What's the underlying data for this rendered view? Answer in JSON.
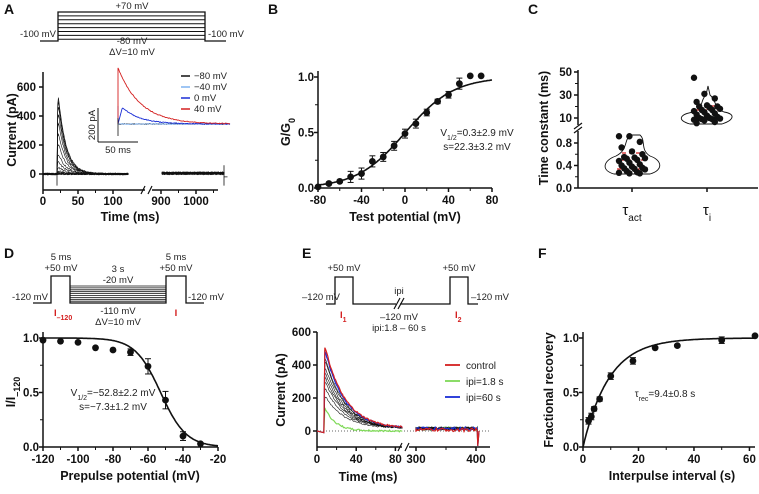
{
  "colors": {
    "red": "#d42020",
    "green": "#7ed957",
    "blue": "#1a2ed6",
    "lightblue": "#7fb2f0",
    "black": "#111111"
  },
  "chart_data": [
    {
      "panel": "A",
      "type": "line",
      "protocol": {
        "top": "+70 mV",
        "hold_left": "-100 mV",
        "hold_right": "-100 mV",
        "bottom": "-80 mV",
        "step": "ΔV=10 mV"
      },
      "xlabel": "Time (ms)",
      "ylabel": "Current (pA)",
      "xticks": [
        "0",
        "50",
        "100",
        "900",
        "1000"
      ],
      "yticks": [
        "0",
        "200",
        "400",
        "600"
      ],
      "x_segments": [
        [
          0,
          125
        ],
        [
          870,
          1100
        ]
      ],
      "ylim": [
        -100,
        700
      ],
      "inset": {
        "scale_y": "200 pA",
        "scale_x": "50 ms",
        "legend": [
          {
            "name": "−80 mV",
            "color": "#111111"
          },
          {
            "name": "−40 mV",
            "color": "#7fb2f0"
          },
          {
            "name": "0 mV",
            "color": "#1a2ed6"
          },
          {
            "name": "40 mV",
            "color": "#d42020"
          }
        ]
      }
    },
    {
      "panel": "B",
      "type": "scatter",
      "xlabel": "Test potential (mV)",
      "ylabel": {
        "main": "G/G",
        "sub": "0"
      },
      "xlim": [
        -80,
        80
      ],
      "ylim": [
        0,
        1.05
      ],
      "xticks": [
        "-80",
        "-40",
        "0",
        "40",
        "80"
      ],
      "yticks": [
        "0.0",
        "0.5",
        "1.0"
      ],
      "x": [
        -80,
        -70,
        -60,
        -50,
        -40,
        -30,
        -20,
        -10,
        0,
        10,
        20,
        30,
        40,
        50,
        60,
        70
      ],
      "y": [
        0.01,
        0.04,
        0.06,
        0.1,
        0.13,
        0.24,
        0.28,
        0.38,
        0.49,
        0.58,
        0.68,
        0.78,
        0.84,
        0.94,
        1.01,
        1.01
      ],
      "err": [
        0.01,
        0.01,
        0.01,
        0.05,
        0.05,
        0.05,
        0.04,
        0.04,
        0.04,
        0.04,
        0.03,
        0.02,
        0.03,
        0.05,
        0,
        0
      ],
      "fit": {
        "type": "boltzmann",
        "v_half": 0.3,
        "slope": 22.3
      },
      "annotation": [
        {
          "v": "V",
          "sub": "1/2",
          "rest": "=0.3±2.9 mV"
        },
        {
          "text": "s=22.3±3.2 mV"
        }
      ]
    },
    {
      "panel": "C",
      "type": "violin-scatter",
      "ylabel": "Time constant (ms)",
      "categories": [
        {
          "main": "τ",
          "sub": "act"
        },
        {
          "main": "τ",
          "sub": "i"
        }
      ],
      "yticks_lower": [
        "0.0",
        "0.4",
        "0.8"
      ],
      "yticks_upper": [
        "10",
        "30",
        "50"
      ],
      "y_segments": [
        [
          0,
          1.0
        ],
        [
          8,
          50
        ]
      ],
      "series": [
        {
          "values": [
            0.92,
            0.92,
            0.82,
            0.72,
            0.65,
            0.6,
            0.55,
            0.54,
            0.53,
            0.52,
            0.5,
            0.48,
            0.45,
            0.42,
            0.4,
            0.38,
            0.36,
            0.35,
            0.34,
            0.33,
            0.3,
            0.28,
            0.27,
            0.26,
            0.26
          ]
        },
        {
          "values": [
            45,
            31,
            27,
            24,
            21,
            20,
            20,
            19,
            18,
            17,
            17,
            16,
            15,
            14,
            13,
            12,
            11,
            10,
            10,
            9.5,
            9,
            9,
            8.5,
            8,
            6.5,
            5.5
          ]
        }
      ]
    },
    {
      "panel": "D",
      "type": "scatter",
      "protocol": {
        "pulse1_dur": "5 ms",
        "pulse1_v": "+50 mV",
        "hold_left": "-120 mV",
        "pre_dur": "3 s",
        "pre_top": "-20 mV",
        "pre_bottom": "-110 mV",
        "step": "ΔV=10 mV",
        "pulse2_dur": "5 ms",
        "pulse2_v": "+50 mV",
        "hold_right": "-120 mV",
        "i1_main": "I",
        "i1_sub": "–120",
        "i2": "I"
      },
      "xlabel": "Prepulse potential (mV)",
      "ylabel": {
        "main": "I/I",
        "sub": "–120"
      },
      "xlim": [
        -120,
        -20
      ],
      "ylim": [
        0,
        1.05
      ],
      "xticks": [
        "-120",
        "-100",
        "-80",
        "-60",
        "-40",
        "-20"
      ],
      "yticks": [
        "0.0",
        "0.5",
        "1.0"
      ],
      "x": [
        -120,
        -110,
        -100,
        -90,
        -80,
        -70,
        -60,
        -50,
        -40,
        -30
      ],
      "y": [
        0.98,
        0.97,
        0.96,
        0.91,
        0.89,
        0.87,
        0.74,
        0.43,
        0.1,
        0.03
      ],
      "err": [
        0,
        0,
        0,
        0,
        0,
        0.03,
        0.07,
        0.08,
        0.04,
        0.01
      ],
      "fit": {
        "type": "boltzmann",
        "v_half": -52.8,
        "slope": -7.3
      },
      "annotation": [
        {
          "v": "V",
          "sub": "1/2",
          "rest": "=−52.8±2.2 mV"
        },
        {
          "text": "s=−7.3±1.2 mV"
        }
      ]
    },
    {
      "panel": "E",
      "type": "line",
      "protocol": {
        "pulse1_v": "+50 mV",
        "hold_left": "–120 mV",
        "ipi": "ipi",
        "mid_v": "–120 mV",
        "ipi_range": "ipi:1.8 – 60 s",
        "pulse2_v": "+50 mV",
        "hold_right": "–120 mV",
        "i1_main": "I",
        "i1_sub": "1",
        "i2_main": "I",
        "i2_sub": "2"
      },
      "xlabel": "Time (ms)",
      "ylabel": "Current (pA)",
      "xticks": [
        "0",
        "40",
        "80",
        "300",
        "400"
      ],
      "yticks": [
        "0",
        "200",
        "400",
        "600"
      ],
      "x_segments": [
        [
          0,
          90
        ],
        [
          290,
          420
        ]
      ],
      "ylim": [
        -100,
        600
      ],
      "legend": [
        {
          "name": "control",
          "color": "#d42020"
        },
        {
          "name": "ipi=1.8 s",
          "color": "#7ed957"
        },
        {
          "name": "ipi=60 s",
          "color": "#1a2ed6"
        }
      ]
    },
    {
      "panel": "F",
      "type": "scatter",
      "xlabel": "Interpulse interval (s)",
      "ylabel": "Fractional recovery",
      "xlim": [
        0,
        65
      ],
      "ylim": [
        0,
        1.05
      ],
      "xticks": [
        "0",
        "20",
        "40",
        "60"
      ],
      "yticks": [
        "0.0",
        "0.5",
        "1.0"
      ],
      "x": [
        2,
        3,
        4,
        6,
        10,
        18,
        26,
        34,
        50,
        62
      ],
      "y": [
        0.24,
        0.28,
        0.35,
        0.44,
        0.65,
        0.79,
        0.91,
        0.93,
        0.98,
        1.02
      ],
      "err": [
        0.03,
        0.03,
        0.02,
        0.02,
        0.03,
        0.03,
        0.01,
        0.01,
        0.03,
        0
      ],
      "fit": {
        "type": "exponential",
        "tau": 9.4
      },
      "annotation": {
        "main": "τ",
        "sub": "rec",
        "rest": "=9.4±0.8 s"
      }
    }
  ]
}
